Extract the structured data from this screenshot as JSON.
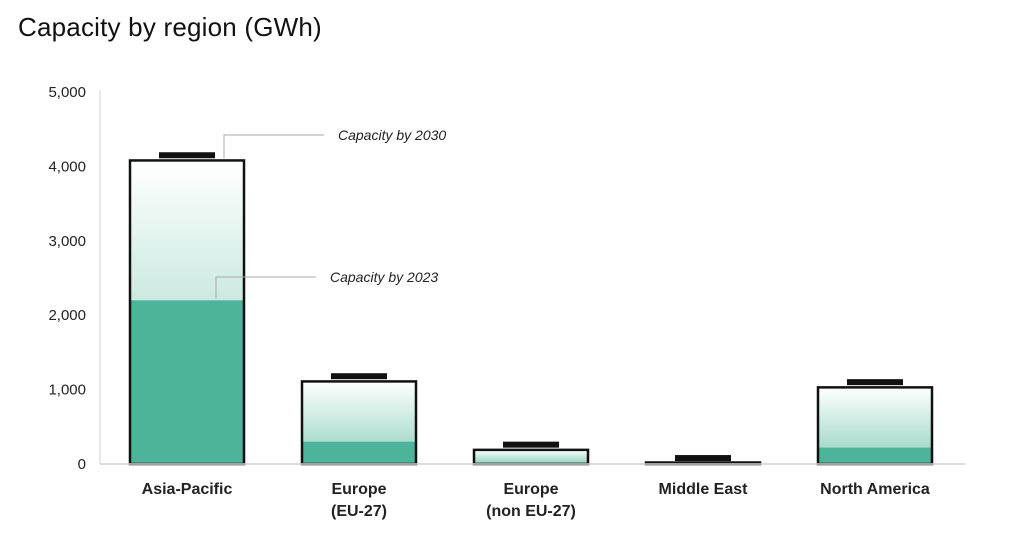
{
  "title": "Capacity by region (GWh)",
  "chart_data": {
    "type": "bar",
    "title": "Capacity by region (GWh)",
    "xlabel": "",
    "ylabel": "",
    "ylim": [
      0,
      5000
    ],
    "yticks": [
      "0",
      "1,000",
      "2,000",
      "3,000",
      "4,000",
      "5,000"
    ],
    "categories": [
      [
        "Asia-Pacific"
      ],
      [
        "Europe",
        "(EU-27)"
      ],
      [
        "Europe",
        "(non EU-27)"
      ],
      [
        "Middle East"
      ],
      [
        "North America"
      ]
    ],
    "series": [
      {
        "name": "Capacity by 2023",
        "values": [
          2200,
          300,
          20,
          10,
          220
        ]
      },
      {
        "name": "Capacity by 2030",
        "values": [
          4080,
          1110,
          190,
          20,
          1030
        ]
      }
    ],
    "range_top": [
      4150,
      1180,
      260,
      80,
      1100
    ],
    "annotations": [
      {
        "text": "Capacity by 2030",
        "target_series": 1,
        "target_category": 0
      },
      {
        "text": "Capacity by 2023",
        "target_series": 0,
        "target_category": 0
      }
    ],
    "grid": false,
    "colors": {
      "solid": "#4cb498",
      "gradient_top": "#ffffff",
      "gradient_bottom": "#8fd1bd",
      "outline": "#111111",
      "range_cap": "#111111",
      "axis": "#d0d0d0"
    }
  }
}
